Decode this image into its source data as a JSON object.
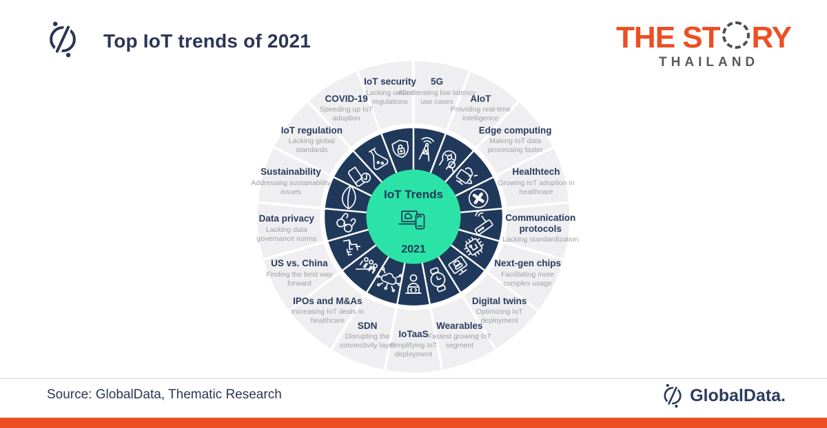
{
  "header": {
    "title": "Top IoT trends of 2021"
  },
  "brand": {
    "the_story": {
      "part1": "THE ST",
      "part2": "RY",
      "subtitle": "THAILAND"
    }
  },
  "footer": {
    "source": "Source: GlobalData, Thematic Research",
    "globaldata_text": "GlobalData."
  },
  "colors": {
    "accent_orange": "#EE4E23",
    "navy": "#20395B",
    "green": "#2BE3A6",
    "ring_gray": "#EFEFF1",
    "title_navy": "#2C3554",
    "label_navy": "#2B3A5E",
    "desc_gray": "#9EA0A3",
    "story_gray": "#58595B",
    "divider": "#E3E8EE"
  },
  "chart_data": {
    "type": "radial-wheel",
    "center": {
      "title": "IoT Trends",
      "year": "2021",
      "icon": "laptop-phone-icon"
    },
    "segments": [
      {
        "label": "IoT security",
        "description": "Lacking unified regulations",
        "icon": "shield-lock-icon"
      },
      {
        "label": "5G",
        "description": "Accelerating low latency use cases",
        "icon": "radio-tower-icon"
      },
      {
        "label": "AIoT",
        "description": "Providing real-time intelligence",
        "icon": "ai-head-icon"
      },
      {
        "label": "Edge computing",
        "description": "Making IoT data processing faster",
        "icon": "monitor-cloud-icon"
      },
      {
        "label": "Healthtech",
        "description": "Growing IoT adoption in healthcare",
        "icon": "health-cross-icon"
      },
      {
        "label": "Communication protocols",
        "description": "Lacking standardization",
        "icon": "router-antenna-icon"
      },
      {
        "label": "Next-gen chips",
        "description": "Facilitating more complex usage",
        "icon": "chip-icon"
      },
      {
        "label": "Digital twins",
        "description": "Optimizing IoT deployment",
        "icon": "monitor-robot-icon"
      },
      {
        "label": "Wearables",
        "description": "Fastest growing IoT segment",
        "icon": "smartwatch-icon"
      },
      {
        "label": "IoTaaS",
        "description": "Simplifying IoT deployment",
        "icon": "developer-laptop-icon"
      },
      {
        "label": "SDN",
        "description": "Disrupting the connectivity layer",
        "icon": "cloud-network-icon"
      },
      {
        "label": "IPOs and M&As",
        "description": "Increasing IoT deals in healthcare",
        "icon": "people-growth-icon"
      },
      {
        "label": "US vs. China",
        "description": "Finding the best way forward",
        "icon": "handshake-icon"
      },
      {
        "label": "Data privacy",
        "description": "Lacking  data governance norms",
        "icon": "binoculars-icon"
      },
      {
        "label": "Sustainability",
        "description": "Addressing sustainability issues",
        "icon": "leaf-icon"
      },
      {
        "label": "IoT regulation",
        "description": "Lacking global standards",
        "icon": "book-check-icon"
      },
      {
        "label": "COVID-19",
        "description": "Speeding up IoT adoption",
        "icon": "flask-icon"
      }
    ]
  }
}
